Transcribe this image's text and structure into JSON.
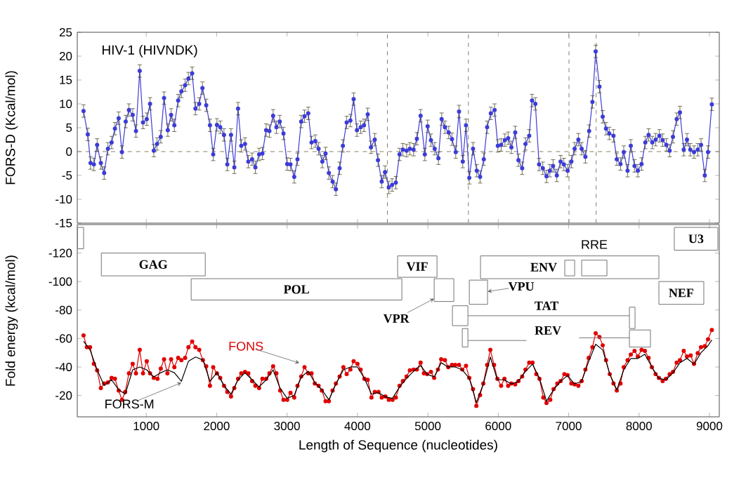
{
  "chart_data": [
    {
      "type": "line",
      "ylabel": "FORS-D (Kcal/mol)",
      "annotations": [
        "HIV-1 (HIVNDK)"
      ],
      "xlim": [
        20,
        9140
      ],
      "ylim": [
        -15,
        25
      ],
      "xticks": [
        1000,
        2000,
        3000,
        4000,
        5000,
        6000,
        7000,
        8000,
        9000
      ],
      "yticks": [
        -15,
        -10,
        -5,
        0,
        5,
        10,
        15,
        20,
        25
      ],
      "tick_labels": "y",
      "marker": "circle",
      "ref_lines": [
        {
          "axis": "y",
          "value": 0,
          "color": "#8a8060",
          "line_style": "dashed"
        },
        {
          "axis": "x",
          "value": 4425,
          "color": "#8a8060",
          "line_style": "dashed"
        },
        {
          "axis": "x",
          "value": 5576,
          "color": "#8a8060",
          "line_style": "dashed"
        },
        {
          "axis": "x",
          "value": 7005,
          "color": "#8a8060",
          "line_style": "dashed"
        },
        {
          "axis": "x",
          "value": 7391,
          "color": "#8a8060",
          "line_style": "dashed"
        }
      ],
      "series": [
        {
          "color": "#3c3cd8",
          "x": [
            109,
            169,
            209,
            256,
            302,
            355,
            402,
            455,
            508,
            555,
            608,
            655,
            708,
            754,
            807,
            854,
            907,
            954,
            1007,
            1054,
            1107,
            1153,
            1206,
            1253,
            1306,
            1353,
            1399,
            1453,
            1499,
            1552,
            1599,
            1652,
            1699,
            1752,
            1798,
            1852,
            1905,
            1951,
            2004,
            2051,
            2104,
            2151,
            2204,
            2251,
            2304,
            2350,
            2403,
            2450,
            2503,
            2550,
            2603,
            2650,
            2703,
            2749,
            2802,
            2849,
            2896,
            2949,
            3002,
            3049,
            3102,
            3148,
            3201,
            3248,
            3301,
            3348,
            3401,
            3448,
            3501,
            3547,
            3594,
            3647,
            3694,
            3747,
            3793,
            3847,
            3900,
            3946,
            3993,
            4046,
            4093,
            4146,
            4192,
            4246,
            4292,
            4345,
            4392,
            4445,
            4492,
            4545,
            4598,
            4645,
            4698,
            4744,
            4797,
            4844,
            4897,
            4957,
            4997,
            5044,
            5097,
            5150,
            5196,
            5243,
            5296,
            5343,
            5396,
            5443,
            5496,
            5542,
            5589,
            5642,
            5695,
            5742,
            5795,
            5842,
            5895,
            5948,
            5994,
            6041,
            6094,
            6141,
            6187,
            6241,
            6287,
            6340,
            6387,
            6440,
            6480,
            6527,
            6580,
            6633,
            6686,
            6733,
            6779,
            6832,
            6886,
            6932,
            6985,
            7039,
            7085,
            7138,
            7185,
            7238,
            7291,
            7338,
            7384,
            7438,
            7484,
            7531,
            7577,
            7637,
            7684,
            7737,
            7783,
            7837,
            7883,
            7936,
            7983,
            8036,
            8089,
            8136,
            8189,
            8236,
            8289,
            8335,
            8388,
            8435,
            8482,
            8535,
            8581,
            8635,
            8681,
            8728,
            8781,
            8834,
            8881,
            8934,
            8980,
            9034
          ],
          "values": [
            8.5,
            3.6,
            -2.4,
            -2.7,
            1.4,
            -2.4,
            -4.5,
            0.6,
            1.9,
            4.8,
            7.0,
            -0.1,
            6.3,
            8.7,
            7.7,
            4.3,
            16.9,
            6.1,
            6.8,
            10.0,
            0.2,
            1.6,
            3.1,
            11.2,
            4.5,
            7.7,
            5.5,
            10.7,
            12.6,
            13.9,
            15.3,
            16.4,
            9.0,
            10.0,
            13.3,
            9.7,
            5.5,
            -0.6,
            5.6,
            5.1,
            3.5,
            -2.7,
            3.5,
            -3.3,
            9.0,
            1.2,
            1.6,
            -2.1,
            -1.6,
            -3.3,
            -0.6,
            -0.4,
            4.5,
            4.3,
            7.5,
            5.1,
            6.3,
            3.8,
            -2.6,
            -2.7,
            -5.3,
            -1.6,
            6.3,
            7.4,
            8.0,
            1.9,
            2.2,
            0.6,
            -2.1,
            -0.4,
            -4.5,
            -6.3,
            -7.9,
            -3.5,
            1.2,
            6.1,
            6.5,
            11.0,
            4.5,
            5.1,
            5.5,
            7.8,
            0.9,
            2.5,
            -1.8,
            -6.3,
            -4.3,
            -7.5,
            -7.0,
            -6.5,
            -0.6,
            0.4,
            0.2,
            0.6,
            0.4,
            2.7,
            7.5,
            -0.6,
            5.3,
            2.4,
            0.6,
            -1.4,
            6.8,
            5.1,
            4.0,
            2.6,
            -0.1,
            8.4,
            -2.1,
            5.5,
            -5.5,
            0.6,
            -4.0,
            -5.3,
            -1.6,
            5.1,
            8.0,
            8.7,
            1.2,
            1.4,
            2.4,
            2.8,
            0.9,
            4.0,
            -1.8,
            -3.5,
            1.6,
            3.3,
            10.7,
            10.0,
            -2.7,
            -3.5,
            -5.2,
            -4.0,
            -3.0,
            -5.0,
            -2.1,
            -2.7,
            -4.0,
            -2.1,
            0.6,
            2.5,
            0.6,
            -1.1,
            4.3,
            10.4,
            21.0,
            13.6,
            7.3,
            4.8,
            3.8,
            3.3,
            -1.6,
            -2.6,
            -0.1,
            -4.0,
            1.2,
            -3.0,
            -4.0,
            -2.6,
            1.9,
            3.5,
            1.9,
            2.5,
            3.3,
            2.4,
            1.4,
            0.2,
            3.1,
            6.8,
            8.2,
            0.4,
            2.5,
            0.4,
            -0.1,
            0.4,
            1.4,
            -5.0,
            -0.1,
            9.9
          ],
          "errors": [
            1.3,
            1.3,
            1.3,
            1.3,
            1.3,
            1.3,
            1.3,
            1.3,
            1.3,
            1.3,
            1.3,
            1.3,
            1.3,
            1.3,
            1.3,
            1.3,
            1.3,
            1.3,
            1.3,
            1.3,
            1.3,
            1.3,
            1.3,
            1.3,
            1.3,
            1.3,
            1.3,
            1.3,
            1.3,
            1.3,
            1.3,
            1.3,
            1.3,
            1.3,
            1.3,
            1.3,
            1.3,
            1.3,
            1.3,
            1.3,
            1.3,
            1.3,
            1.3,
            1.3,
            1.3,
            1.3,
            1.3,
            1.3,
            1.3,
            1.3,
            1.3,
            1.3,
            1.3,
            1.3,
            1.3,
            1.3,
            1.3,
            1.3,
            1.3,
            1.3,
            1.3,
            1.3,
            1.3,
            1.3,
            1.3,
            1.3,
            1.3,
            1.3,
            1.3,
            1.3,
            1.3,
            1.3,
            1.3,
            1.3,
            1.3,
            1.3,
            1.3,
            1.3,
            1.3,
            1.3,
            1.3,
            1.3,
            1.3,
            1.3,
            1.3,
            1.3,
            1.3,
            1.3,
            1.3,
            1.3,
            1.3,
            1.3,
            1.3,
            1.3,
            1.3,
            1.3,
            1.3,
            1.3,
            1.3,
            1.3,
            1.3,
            1.3,
            1.3,
            1.3,
            1.3,
            1.3,
            1.3,
            1.3,
            1.3,
            1.3,
            1.3,
            1.3,
            1.3,
            1.3,
            1.3,
            1.3,
            1.3,
            1.3,
            1.3,
            1.3,
            1.3,
            1.3,
            1.3,
            1.3,
            1.3,
            1.3,
            1.3,
            1.3,
            1.3,
            1.3,
            1.3,
            1.3,
            1.3,
            1.3,
            1.3,
            1.3,
            1.3,
            1.3,
            1.3,
            1.3,
            1.3,
            1.3,
            1.3,
            1.3,
            1.3,
            1.3,
            1.3,
            1.3,
            1.3,
            1.3,
            1.3,
            1.3,
            1.3,
            1.3,
            1.3,
            1.3,
            1.3,
            1.3,
            1.3,
            1.3,
            1.3,
            1.3,
            1.3,
            1.3,
            1.3,
            1.3,
            1.3,
            1.3,
            1.3,
            1.3,
            1.3,
            1.3,
            1.3,
            1.3,
            1.3,
            1.3,
            1.3,
            1.3,
            1.3,
            1.3
          ]
        }
      ]
    },
    {
      "type": "line",
      "xlabel": "Length of Sequence (nucleotides)",
      "ylabel": "Fold energy (kcal/mol)",
      "xlim": [
        20,
        9140
      ],
      "ylim": [
        -5,
        -140
      ],
      "xticks": [
        1000,
        2000,
        3000,
        4000,
        5000,
        6000,
        7000,
        8000,
        9000
      ],
      "yticks": [
        -120,
        -100,
        -80,
        -60,
        -40,
        -20
      ],
      "annotations": [
        {
          "text": "GAG",
          "x": 1100,
          "y": -112
        },
        {
          "text": "POL",
          "x": 3135,
          "y": -94.5
        },
        {
          "text": "VIF",
          "x": 4850,
          "y": -110.5
        },
        {
          "text": "VPR",
          "x": 4551,
          "y": -74
        },
        {
          "text": "ENV",
          "x": 6646,
          "y": -110
        },
        {
          "text": "RRE",
          "x": 7364,
          "y": -126
        },
        {
          "text": "VPU",
          "x": 6327,
          "y": -96.5
        },
        {
          "text": "TAT",
          "x": 6686,
          "y": -83
        },
        {
          "text": "REV",
          "x": 6706,
          "y": -65.6
        },
        {
          "text": "NEF",
          "x": 8600,
          "y": -92
        },
        {
          "text": "U3",
          "x": 8810,
          "y": -130
        }
      ],
      "series": [
        {
          "name": "FONS",
          "color": "#e00000",
          "marker": "circle",
          "x": [
            109,
            156,
            202,
            256,
            302,
            355,
            402,
            455,
            508,
            555,
            608,
            655,
            701,
            754,
            807,
            854,
            907,
            954,
            1007,
            1054,
            1107,
            1160,
            1206,
            1253,
            1300,
            1353,
            1399,
            1453,
            1499,
            1552,
            1599,
            1652,
            1699,
            1752,
            1805,
            1852,
            1905,
            1951,
            2004,
            2051,
            2104,
            2151,
            2204,
            2251,
            2304,
            2350,
            2403,
            2450,
            2503,
            2550,
            2603,
            2650,
            2703,
            2749,
            2802,
            2849,
            2902,
            2949,
            3002,
            3049,
            3102,
            3148,
            3201,
            3248,
            3301,
            3348,
            3394,
            3448,
            3494,
            3547,
            3594,
            3647,
            3694,
            3747,
            3800,
            3847,
            3900,
            3946,
            4000,
            4046,
            4099,
            4146,
            4199,
            4246,
            4299,
            4345,
            4398,
            4445,
            4498,
            4545,
            4598,
            4645,
            4698,
            4744,
            4797,
            4844,
            4897,
            4944,
            4990,
            5044,
            5090,
            5143,
            5190,
            5243,
            5290,
            5343,
            5389,
            5443,
            5489,
            5542,
            5589,
            5642,
            5689,
            5742,
            5788,
            5842,
            5888,
            5941,
            5988,
            6041,
            6088,
            6141,
            6187,
            6241,
            6287,
            6340,
            6387,
            6440,
            6487,
            6540,
            6586,
            6640,
            6686,
            6739,
            6786,
            6839,
            6886,
            6939,
            6985,
            7039,
            7085,
            7138,
            7185,
            7238,
            7285,
            7338,
            7384,
            7438,
            7484,
            7531,
            7584,
            7637,
            7684,
            7737,
            7783,
            7837,
            7883,
            7936,
            7983,
            8036,
            8083,
            8136,
            8182,
            8235,
            8282,
            8335,
            8382,
            8435,
            8482,
            8535,
            8581,
            8635,
            8681,
            8734,
            8781,
            8834,
            8880,
            8934,
            8980,
            9034
          ],
          "values": [
            -62.1,
            -53.9,
            -53.9,
            -42.2,
            -37.6,
            -25.2,
            -28.4,
            -29.1,
            -32.3,
            -31.7,
            -23.5,
            -17.0,
            -22.5,
            -35.6,
            -42.2,
            -35.6,
            -52.0,
            -35.6,
            -44.1,
            -35.6,
            -32.3,
            -31.7,
            -38.9,
            -45.4,
            -35.6,
            -45.4,
            -39.9,
            -46.4,
            -44.8,
            -46.4,
            -53.9,
            -57.9,
            -53.9,
            -52.0,
            -44.8,
            -40.5,
            -26.8,
            -39.9,
            -35.6,
            -32.3,
            -26.8,
            -22.5,
            -19.3,
            -25.2,
            -31.7,
            -35.6,
            -36.6,
            -35.6,
            -30.1,
            -26.8,
            -25.2,
            -31.7,
            -31.7,
            -35.6,
            -40.5,
            -35.6,
            -23.5,
            -17.0,
            -17.0,
            -21.9,
            -18.6,
            -26.8,
            -33.3,
            -39.9,
            -35.6,
            -35.6,
            -28.4,
            -26.8,
            -23.5,
            -16.0,
            -16.0,
            -23.5,
            -28.4,
            -33.3,
            -39.9,
            -35.0,
            -38.2,
            -44.1,
            -42.2,
            -38.2,
            -31.7,
            -31.0,
            -18.6,
            -22.5,
            -22.5,
            -18.6,
            -19.3,
            -17.0,
            -17.0,
            -18.6,
            -26.8,
            -30.1,
            -33.3,
            -37.6,
            -38.2,
            -38.2,
            -43.1,
            -35.6,
            -35.0,
            -36.6,
            -32.3,
            -38.2,
            -45.4,
            -44.8,
            -39.9,
            -41.5,
            -41.5,
            -41.5,
            -38.2,
            -40.8,
            -32.3,
            -24.5,
            -12.7,
            -20.3,
            -28.4,
            -41.5,
            -52.0,
            -41.5,
            -31.7,
            -26.8,
            -31.7,
            -26.8,
            -28.4,
            -27.8,
            -30.1,
            -33.3,
            -38.2,
            -43.1,
            -43.1,
            -35.0,
            -31.7,
            -18.6,
            -14.7,
            -17.0,
            -24.5,
            -28.4,
            -30.1,
            -35.0,
            -34.3,
            -28.4,
            -27.8,
            -26.8,
            -30.1,
            -38.2,
            -46.4,
            -53.9,
            -63.7,
            -61.1,
            -55.2,
            -44.8,
            -35.0,
            -28.4,
            -23.5,
            -28.4,
            -39.9,
            -44.8,
            -48.7,
            -51.3,
            -47.4,
            -52.0,
            -51.3,
            -46.4,
            -39.9,
            -35.0,
            -32.3,
            -30.1,
            -31.7,
            -35.0,
            -36.6,
            -43.1,
            -44.8,
            -51.3,
            -47.4,
            -48.1,
            -42.2,
            -49.7,
            -53.9,
            -54.6,
            -59.5,
            -66.0
          ]
        },
        {
          "name": "FORS-M",
          "color": "#000000",
          "marker": "none",
          "x": [
            109,
            202,
            302,
            402,
            508,
            608,
            701,
            807,
            907,
            1007,
            1107,
            1206,
            1300,
            1399,
            1499,
            1599,
            1699,
            1805,
            1905,
            2004,
            2104,
            2204,
            2304,
            2403,
            2503,
            2603,
            2703,
            2802,
            2902,
            3002,
            3102,
            3201,
            3301,
            3394,
            3494,
            3594,
            3694,
            3800,
            3900,
            4000,
            4099,
            4199,
            4299,
            4398,
            4498,
            4598,
            4698,
            4797,
            4897,
            4990,
            5090,
            5190,
            5290,
            5389,
            5489,
            5589,
            5689,
            5788,
            5888,
            5988,
            6088,
            6187,
            6287,
            6387,
            6487,
            6586,
            6686,
            6786,
            6886,
            6985,
            7085,
            7185,
            7285,
            7384,
            7484,
            7584,
            7684,
            7783,
            7883,
            7983,
            8083,
            8182,
            8282,
            8382,
            8482,
            8581,
            8681,
            8781,
            8880,
            8980,
            9034
          ],
          "values": [
            -58,
            -52,
            -38,
            -27,
            -31,
            -24,
            -21,
            -38,
            -40,
            -38,
            -33,
            -36,
            -38,
            -36,
            -30,
            -44,
            -47,
            -45,
            -30,
            -36,
            -27,
            -21,
            -31,
            -36,
            -31,
            -26,
            -31,
            -38,
            -25,
            -18,
            -20,
            -33,
            -37,
            -29,
            -24,
            -17,
            -28,
            -38,
            -40,
            -40,
            -32,
            -21,
            -22,
            -19,
            -18,
            -26,
            -32,
            -37,
            -41,
            -35,
            -33,
            -43,
            -40,
            -40,
            -38,
            -32,
            -15,
            -28,
            -47,
            -31,
            -31,
            -28,
            -30,
            -37,
            -42,
            -32,
            -16,
            -24,
            -30,
            -34,
            -28,
            -30,
            -44,
            -56,
            -52,
            -35,
            -24,
            -38,
            -46,
            -46,
            -49,
            -40,
            -32,
            -31,
            -36,
            -43,
            -46,
            -42,
            -50,
            -55,
            -59
          ]
        }
      ]
    }
  ]
}
